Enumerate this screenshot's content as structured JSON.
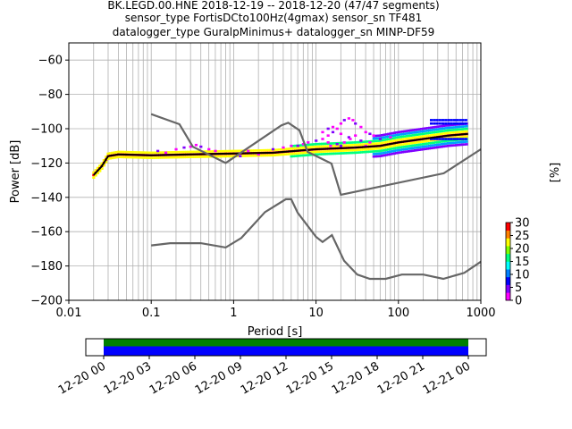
{
  "title_lines": [
    "BK.LEGD.00.HNE   2018-12-19 -- 2018-12-20  (47/47 segments)",
    "sensor_type FortisDCto100Hz(4gmax) sensor_sn TF481",
    "datalogger_type GuralpMinimus+ datalogger_sn MINP-DF59"
  ],
  "chart_data": {
    "type": "heatmap",
    "xlabel": "Period [s]",
    "ylabel": "Power [dB]",
    "xscale": "log",
    "xlim": [
      0.01,
      1000
    ],
    "ylim": [
      -200,
      -50
    ],
    "x_ticks": [
      "0.01",
      "0.1",
      "1",
      "10",
      "100",
      "1000"
    ],
    "y_ticks": [
      "−200",
      "−180",
      "−160",
      "−140",
      "−120",
      "−100",
      "−80",
      "−60"
    ],
    "grid": true,
    "noise_models": [
      {
        "points": [
          [
            0.1,
            -91.5
          ],
          [
            0.22,
            -97.4
          ],
          [
            0.32,
            -110.5
          ],
          [
            0.8,
            -120
          ],
          [
            3.8,
            -98
          ],
          [
            4.6,
            -96.5
          ],
          [
            6.3,
            -101
          ],
          [
            7.9,
            -113.5
          ],
          [
            15.4,
            -120.3
          ],
          [
            20,
            -138.5
          ],
          [
            354.8,
            -126
          ],
          [
            1000,
            -112
          ]
        ]
      },
      {
        "points": [
          [
            0.1,
            -168
          ],
          [
            0.17,
            -166.7
          ],
          [
            0.4,
            -166.7
          ],
          [
            0.8,
            -169.2
          ],
          [
            1.24,
            -163.7
          ],
          [
            2.4,
            -148.6
          ],
          [
            4.3,
            -141.1
          ],
          [
            5,
            -141.1
          ],
          [
            6,
            -149
          ],
          [
            10,
            -163
          ],
          [
            12,
            -166
          ],
          [
            15.6,
            -162
          ],
          [
            21.9,
            -177
          ],
          [
            31.6,
            -185
          ],
          [
            45,
            -187.5
          ],
          [
            70,
            -187.5
          ],
          [
            110,
            -185
          ],
          [
            200,
            -185
          ],
          [
            350,
            -187.5
          ],
          [
            630,
            -184
          ],
          [
            1000,
            -177.5
          ]
        ]
      }
    ],
    "mean_curve": [
      [
        0.02,
        -127
      ],
      [
        0.025,
        -122
      ],
      [
        0.03,
        -116
      ],
      [
        0.04,
        -115
      ],
      [
        0.1,
        -115.5
      ],
      [
        0.3,
        -115
      ],
      [
        1,
        -114.5
      ],
      [
        3,
        -114
      ],
      [
        10,
        -112
      ],
      [
        30,
        -111
      ],
      [
        60,
        -110
      ],
      [
        100,
        -108
      ],
      [
        200,
        -106
      ],
      [
        400,
        -104
      ],
      [
        700,
        -103
      ]
    ],
    "colorbar": {
      "label": "[%]",
      "range": [
        0,
        30
      ],
      "ticks": [
        "0",
        "5",
        "10",
        "15",
        "20",
        "25",
        "30"
      ]
    },
    "timeline": {
      "ticks": [
        "12-20 00",
        "12-20 03",
        "12-20 06",
        "12-20 09",
        "12-20 12",
        "12-20 15",
        "12-20 18",
        "12-20 21",
        "12-21 00"
      ],
      "colors": {
        "coverage": "#008000",
        "data": "#0000ff"
      }
    }
  }
}
